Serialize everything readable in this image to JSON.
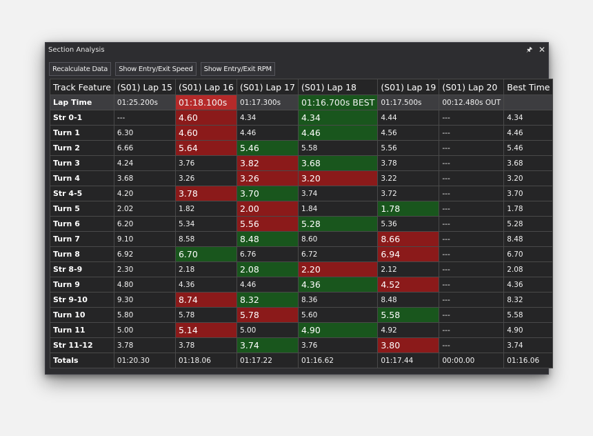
{
  "window": {
    "title": "Section Analysis",
    "pin_icon": "pin-icon",
    "close_icon": "close-icon"
  },
  "toolbar": {
    "recalculate_label": "Recalculate Data",
    "entry_exit_speed_label": "Show Entry/Exit Speed",
    "entry_exit_rpm_label": "Show Entry/Exit RPM"
  },
  "table": {
    "columns": [
      "Track Feature",
      "(S01) Lap 15",
      "(S01) Lap 16",
      "(S01) Lap 17",
      "(S01) Lap 18",
      "(S01) Lap 19",
      "(S01) Lap 20",
      "Best Time"
    ],
    "rows": [
      {
        "feature": "Lap Time",
        "cells": [
          {
            "v": "01:25.200s",
            "c": ""
          },
          {
            "v": "01:18.100s",
            "c": "lap-red"
          },
          {
            "v": "01:17.300s",
            "c": ""
          },
          {
            "v": "01:16.700s BEST",
            "c": "lap-green"
          },
          {
            "v": "01:17.500s",
            "c": ""
          },
          {
            "v": "00:12.480s OUT",
            "c": ""
          },
          {
            "v": "",
            "c": ""
          }
        ]
      },
      {
        "feature": "Str 0-1",
        "cells": [
          {
            "v": "---",
            "c": ""
          },
          {
            "v": "4.60",
            "c": "red"
          },
          {
            "v": "4.34",
            "c": ""
          },
          {
            "v": "4.34",
            "c": "green"
          },
          {
            "v": "4.44",
            "c": ""
          },
          {
            "v": "---",
            "c": ""
          },
          {
            "v": "4.34",
            "c": ""
          }
        ]
      },
      {
        "feature": "Turn 1",
        "cells": [
          {
            "v": "6.30",
            "c": ""
          },
          {
            "v": "4.60",
            "c": "red"
          },
          {
            "v": "4.46",
            "c": ""
          },
          {
            "v": "4.46",
            "c": "green"
          },
          {
            "v": "4.56",
            "c": ""
          },
          {
            "v": "---",
            "c": ""
          },
          {
            "v": "4.46",
            "c": ""
          }
        ]
      },
      {
        "feature": "Turn 2",
        "cells": [
          {
            "v": "6.66",
            "c": ""
          },
          {
            "v": "5.64",
            "c": "red"
          },
          {
            "v": "5.46",
            "c": "green"
          },
          {
            "v": "5.58",
            "c": ""
          },
          {
            "v": "5.56",
            "c": ""
          },
          {
            "v": "---",
            "c": ""
          },
          {
            "v": "5.46",
            "c": ""
          }
        ]
      },
      {
        "feature": "Turn 3",
        "cells": [
          {
            "v": "4.24",
            "c": ""
          },
          {
            "v": "3.76",
            "c": ""
          },
          {
            "v": "3.82",
            "c": "red"
          },
          {
            "v": "3.68",
            "c": "green"
          },
          {
            "v": "3.78",
            "c": ""
          },
          {
            "v": "---",
            "c": ""
          },
          {
            "v": "3.68",
            "c": ""
          }
        ]
      },
      {
        "feature": "Turn 4",
        "cells": [
          {
            "v": "3.68",
            "c": ""
          },
          {
            "v": "3.26",
            "c": ""
          },
          {
            "v": "3.26",
            "c": "red"
          },
          {
            "v": "3.20",
            "c": "red"
          },
          {
            "v": "3.22",
            "c": ""
          },
          {
            "v": "---",
            "c": ""
          },
          {
            "v": "3.20",
            "c": ""
          }
        ]
      },
      {
        "feature": "Str 4-5",
        "cells": [
          {
            "v": "4.20",
            "c": ""
          },
          {
            "v": "3.78",
            "c": "red"
          },
          {
            "v": "3.70",
            "c": "green"
          },
          {
            "v": "3.74",
            "c": ""
          },
          {
            "v": "3.72",
            "c": ""
          },
          {
            "v": "---",
            "c": ""
          },
          {
            "v": "3.70",
            "c": ""
          }
        ]
      },
      {
        "feature": "Turn 5",
        "cells": [
          {
            "v": "2.02",
            "c": ""
          },
          {
            "v": "1.82",
            "c": ""
          },
          {
            "v": "2.00",
            "c": "red"
          },
          {
            "v": "1.84",
            "c": ""
          },
          {
            "v": "1.78",
            "c": "green"
          },
          {
            "v": "---",
            "c": ""
          },
          {
            "v": "1.78",
            "c": ""
          }
        ]
      },
      {
        "feature": "Turn 6",
        "cells": [
          {
            "v": "6.20",
            "c": ""
          },
          {
            "v": "5.34",
            "c": ""
          },
          {
            "v": "5.56",
            "c": "red"
          },
          {
            "v": "5.28",
            "c": "green"
          },
          {
            "v": "5.36",
            "c": ""
          },
          {
            "v": "---",
            "c": ""
          },
          {
            "v": "5.28",
            "c": ""
          }
        ]
      },
      {
        "feature": "Turn 7",
        "cells": [
          {
            "v": "9.10",
            "c": ""
          },
          {
            "v": "8.58",
            "c": ""
          },
          {
            "v": "8.48",
            "c": "green"
          },
          {
            "v": "8.60",
            "c": ""
          },
          {
            "v": "8.66",
            "c": "red"
          },
          {
            "v": "---",
            "c": ""
          },
          {
            "v": "8.48",
            "c": ""
          }
        ]
      },
      {
        "feature": "Turn 8",
        "cells": [
          {
            "v": "6.92",
            "c": ""
          },
          {
            "v": "6.70",
            "c": "green"
          },
          {
            "v": "6.76",
            "c": ""
          },
          {
            "v": "6.72",
            "c": ""
          },
          {
            "v": "6.94",
            "c": "red"
          },
          {
            "v": "---",
            "c": ""
          },
          {
            "v": "6.70",
            "c": ""
          }
        ]
      },
      {
        "feature": "Str 8-9",
        "cells": [
          {
            "v": "2.30",
            "c": ""
          },
          {
            "v": "2.18",
            "c": ""
          },
          {
            "v": "2.08",
            "c": "green"
          },
          {
            "v": "2.20",
            "c": "red"
          },
          {
            "v": "2.12",
            "c": ""
          },
          {
            "v": "---",
            "c": ""
          },
          {
            "v": "2.08",
            "c": ""
          }
        ]
      },
      {
        "feature": "Turn 9",
        "cells": [
          {
            "v": "4.80",
            "c": ""
          },
          {
            "v": "4.36",
            "c": ""
          },
          {
            "v": "4.46",
            "c": ""
          },
          {
            "v": "4.36",
            "c": "green"
          },
          {
            "v": "4.52",
            "c": "red"
          },
          {
            "v": "---",
            "c": ""
          },
          {
            "v": "4.36",
            "c": ""
          }
        ]
      },
      {
        "feature": "Str 9-10",
        "cells": [
          {
            "v": "9.30",
            "c": ""
          },
          {
            "v": "8.74",
            "c": "red"
          },
          {
            "v": "8.32",
            "c": "green"
          },
          {
            "v": "8.36",
            "c": ""
          },
          {
            "v": "8.48",
            "c": ""
          },
          {
            "v": "---",
            "c": ""
          },
          {
            "v": "8.32",
            "c": ""
          }
        ]
      },
      {
        "feature": "Turn 10",
        "cells": [
          {
            "v": "5.80",
            "c": ""
          },
          {
            "v": "5.78",
            "c": ""
          },
          {
            "v": "5.78",
            "c": "red"
          },
          {
            "v": "5.60",
            "c": ""
          },
          {
            "v": "5.58",
            "c": "green"
          },
          {
            "v": "---",
            "c": ""
          },
          {
            "v": "5.58",
            "c": ""
          }
        ]
      },
      {
        "feature": "Turn 11",
        "cells": [
          {
            "v": "5.00",
            "c": ""
          },
          {
            "v": "5.14",
            "c": "red"
          },
          {
            "v": "5.00",
            "c": ""
          },
          {
            "v": "4.90",
            "c": "green"
          },
          {
            "v": "4.92",
            "c": ""
          },
          {
            "v": "---",
            "c": ""
          },
          {
            "v": "4.90",
            "c": ""
          }
        ]
      },
      {
        "feature": "Str 11-12",
        "cells": [
          {
            "v": "3.78",
            "c": ""
          },
          {
            "v": "3.78",
            "c": ""
          },
          {
            "v": "3.74",
            "c": "green"
          },
          {
            "v": "3.76",
            "c": ""
          },
          {
            "v": "3.80",
            "c": "red"
          },
          {
            "v": "---",
            "c": ""
          },
          {
            "v": "3.74",
            "c": ""
          }
        ]
      },
      {
        "feature": "Totals",
        "cells": [
          {
            "v": "01:20.30",
            "c": ""
          },
          {
            "v": "01:18.06",
            "c": ""
          },
          {
            "v": "01:17.22",
            "c": ""
          },
          {
            "v": "01:16.62",
            "c": ""
          },
          {
            "v": "01:17.44",
            "c": ""
          },
          {
            "v": "00:00.00",
            "c": ""
          },
          {
            "v": "01:16.06",
            "c": ""
          }
        ]
      }
    ]
  },
  "colors": {
    "slower": "#8b1a1a",
    "faster": "#19561d",
    "lap_slower": "#b52a2a"
  }
}
